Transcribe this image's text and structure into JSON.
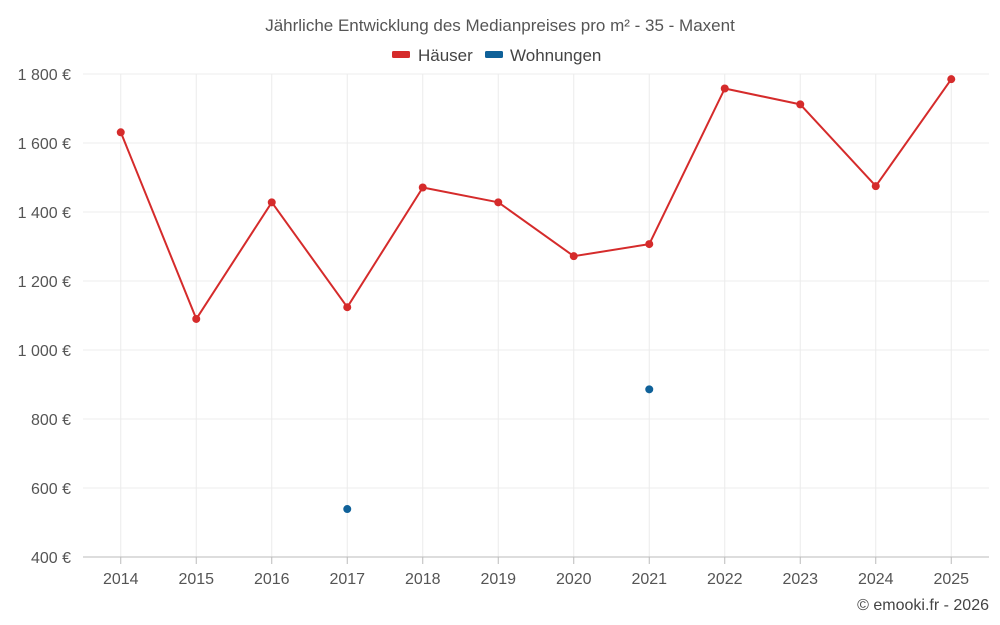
{
  "chart_data": {
    "type": "line",
    "title": "Jährliche Entwicklung des Medianpreises pro m² - 35 - Maxent",
    "categories": [
      "2014",
      "2015",
      "2016",
      "2017",
      "2018",
      "2019",
      "2020",
      "2021",
      "2022",
      "2023",
      "2024",
      "2025"
    ],
    "series": [
      {
        "name": "Häuser",
        "color": "#d52b2b",
        "values": [
          1631,
          1090,
          1428,
          1124,
          1471,
          1428,
          1272,
          1307,
          1758,
          1712,
          1475,
          1785
        ]
      },
      {
        "name": "Wohnungen",
        "color": "#0f6199",
        "values": [
          null,
          null,
          null,
          539,
          null,
          null,
          null,
          886,
          null,
          null,
          null,
          null
        ]
      }
    ],
    "y_ticks": [
      400,
      600,
      800,
      1000,
      1200,
      1400,
      1600,
      1800
    ],
    "y_tick_labels": [
      "400 €",
      "600 €",
      "800 €",
      "1 000 €",
      "1 200 €",
      "1 400 €",
      "1 600 €",
      "1 800 €"
    ],
    "ylim": [
      400,
      1800
    ],
    "grid": true,
    "legend_position": "top-center",
    "credit": "© emooki.fr - 2026"
  }
}
